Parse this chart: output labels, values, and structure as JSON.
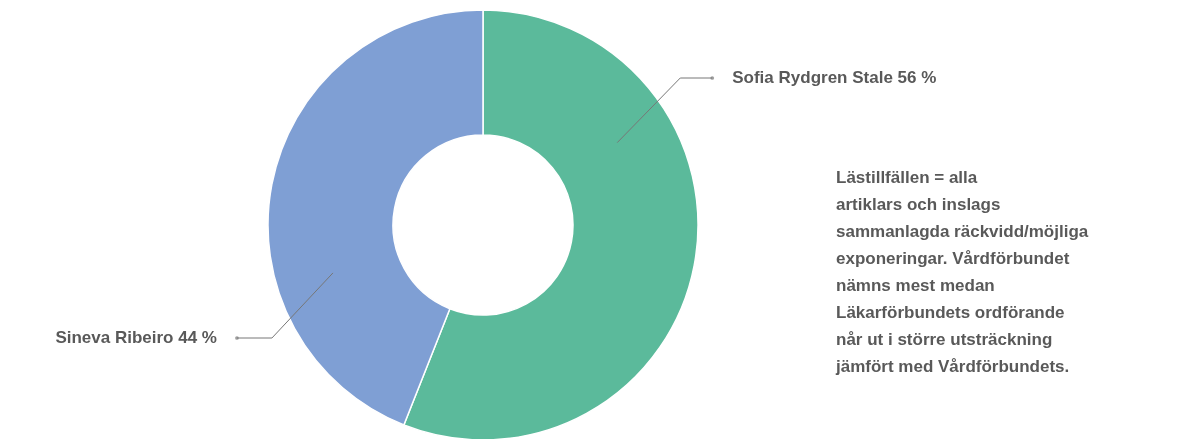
{
  "chart_data": {
    "type": "donut",
    "categories": [
      "Sofia Rydgren Stale",
      "Sineva Ribeiro"
    ],
    "values": [
      56,
      44
    ],
    "value_labels": [
      "56 %",
      "44 %"
    ],
    "colors": [
      "#5bba9b",
      "#7f9fd4"
    ],
    "annotations": [
      "Lästillfällen = alla artiklars och inslags sammanlagda räckvidd/möjliga exponeringar. Vårdförbundet nämns mest medan Läkarförbundets ordförande når ut i större utsträckning jämfört med Vårdförbundets."
    ]
  }
}
